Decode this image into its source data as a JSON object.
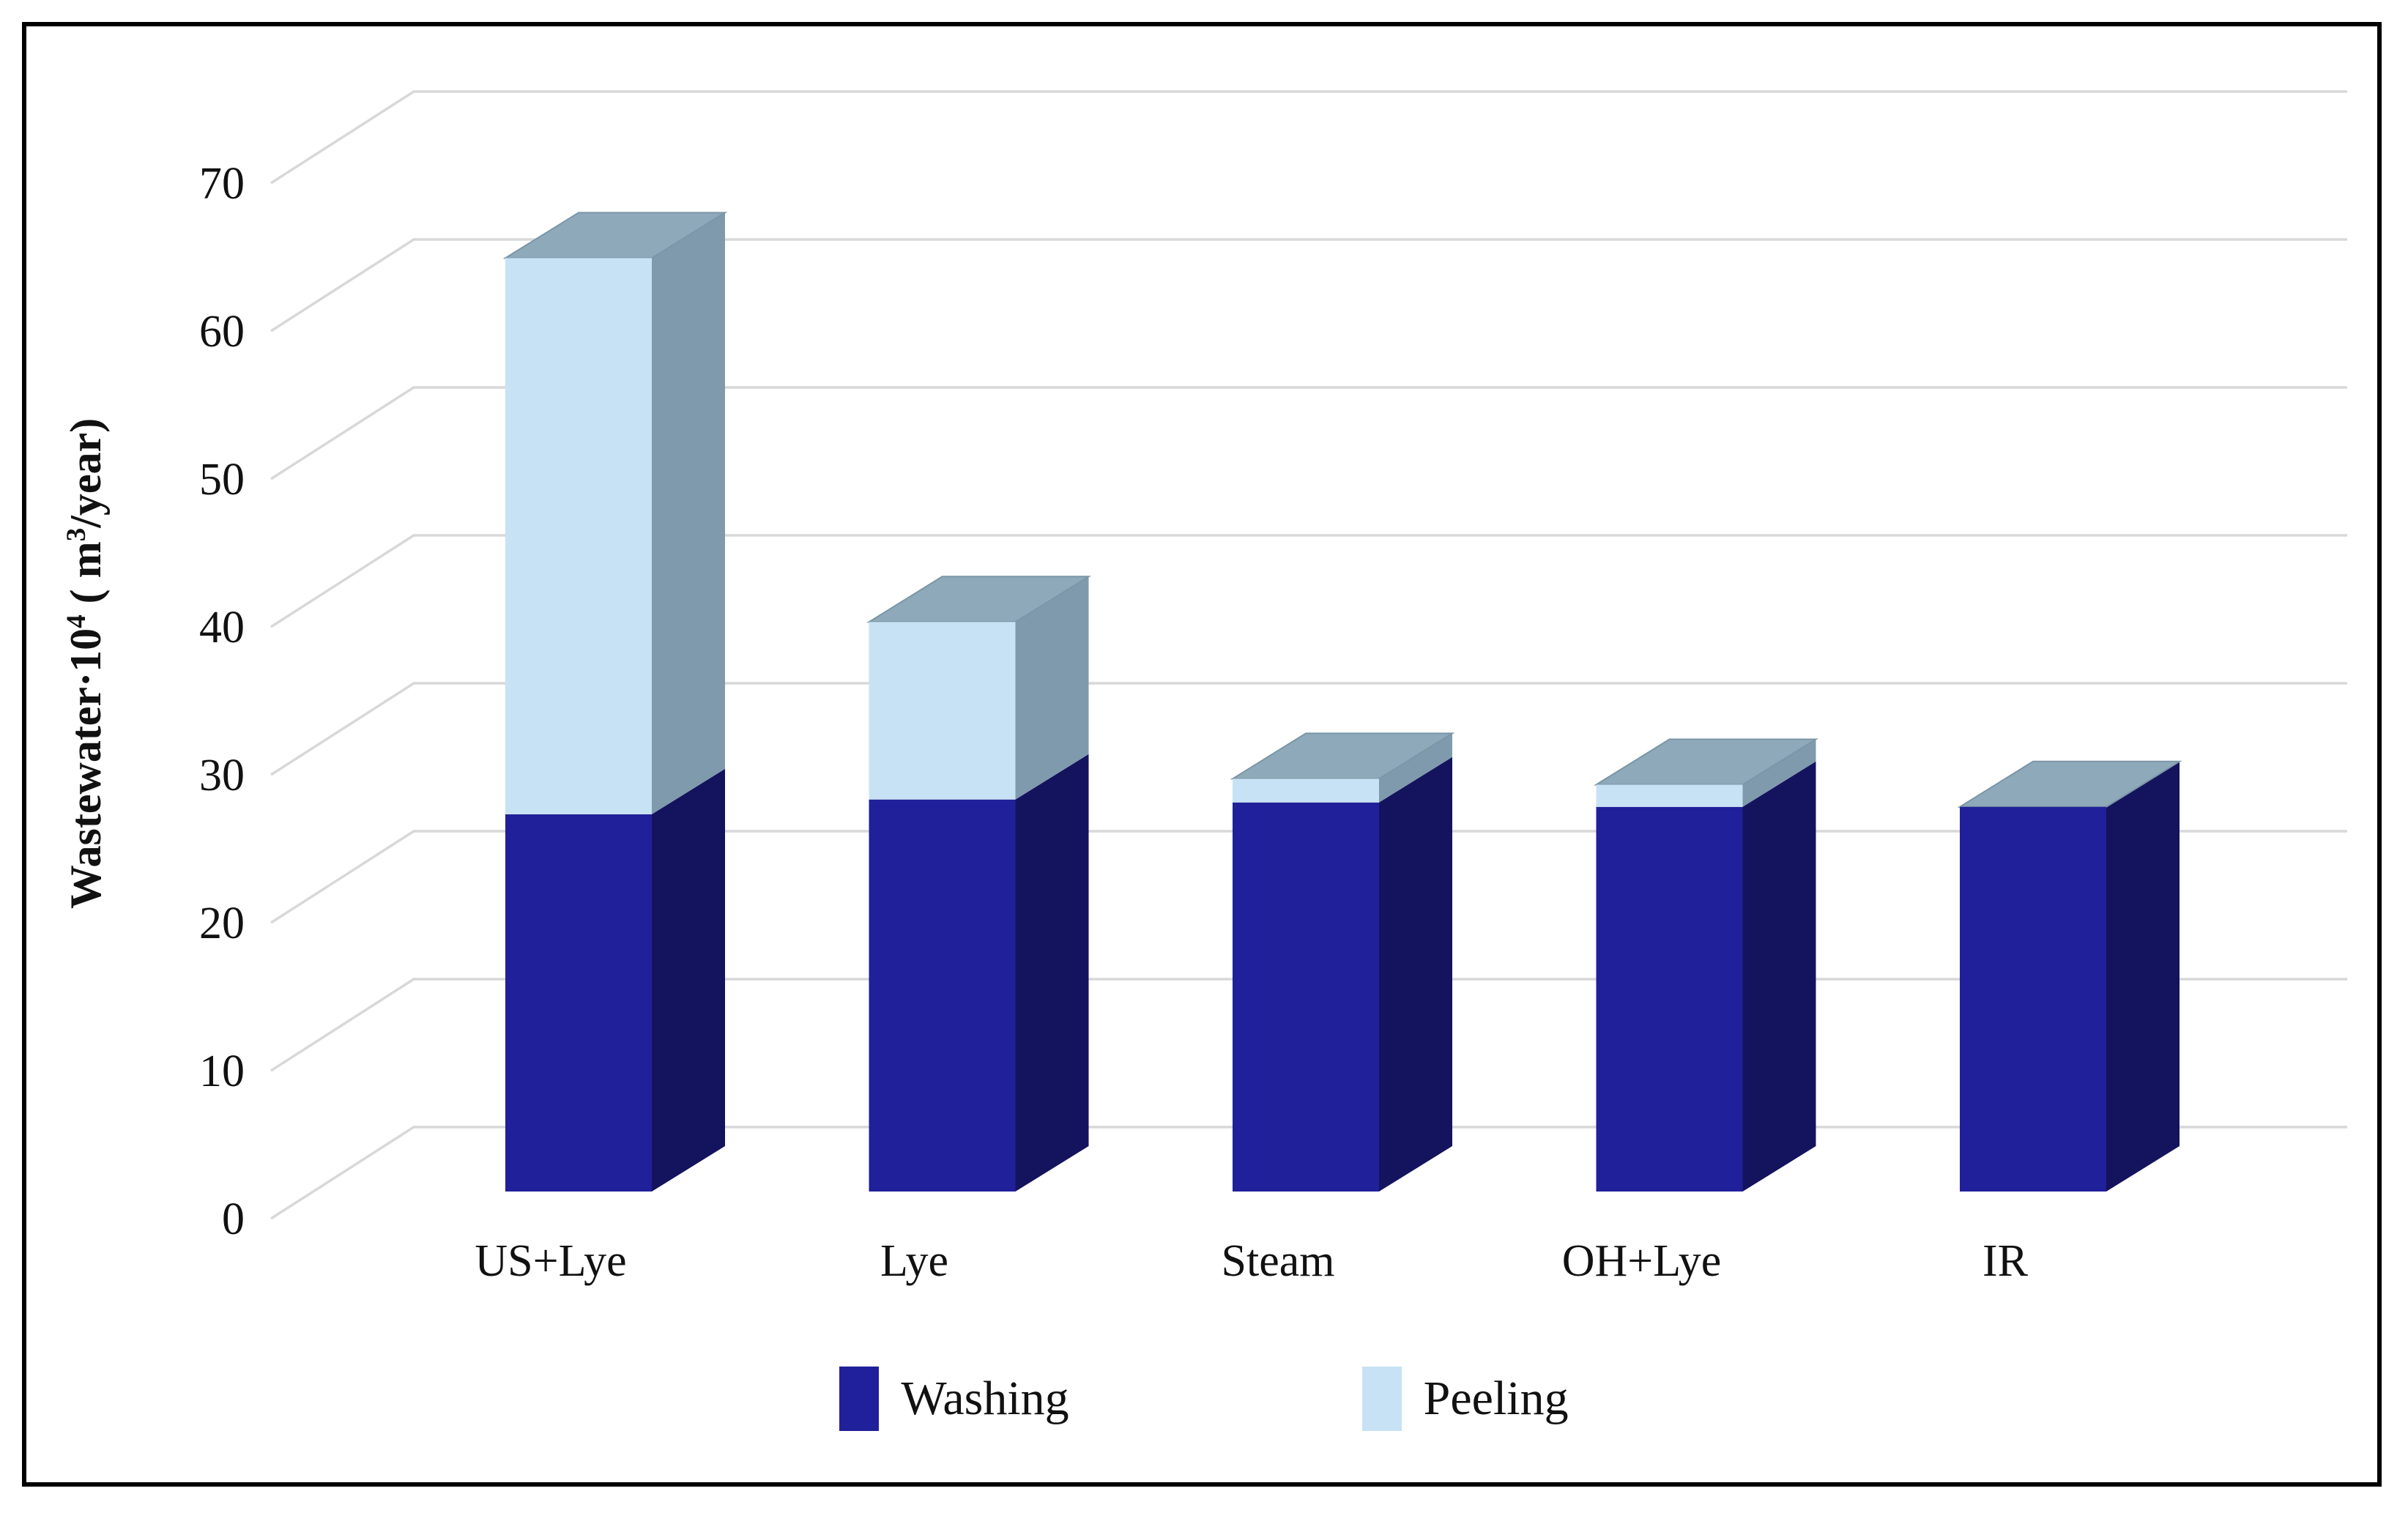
{
  "y_axis": {
    "title_segments": [
      {
        "text": "Wastewater·10",
        "sup": false
      },
      {
        "text": "4",
        "sup": true
      },
      {
        "text": " ( m",
        "sup": false
      },
      {
        "text": "3",
        "sup": true
      },
      {
        "text": "/year)",
        "sup": false
      }
    ],
    "ticks": [
      "0",
      "10",
      "20",
      "30",
      "40",
      "50",
      "60",
      "70"
    ]
  },
  "chart_data": {
    "type": "bar",
    "stacked": true,
    "projection": "3d",
    "title": "",
    "xlabel": "",
    "ylabel": "Wastewater·10^4 (m^3/year)",
    "categories": [
      "US+Lye",
      "Lye",
      "Steam",
      "OH+Lye",
      "IR"
    ],
    "series": [
      {
        "name": "Washing",
        "values": [
          25.5,
          26.5,
          26.3,
          26.0,
          26.0
        ]
      },
      {
        "name": "Peeling",
        "values": [
          37.6,
          12.0,
          1.6,
          1.5,
          0.0
        ]
      }
    ],
    "totals": [
      63.1,
      38.5,
      27.9,
      27.5,
      26.0
    ],
    "ylim": [
      0,
      70
    ],
    "ytick_step": 10,
    "grid": true,
    "legend_position": "bottom"
  },
  "legend": {
    "items": [
      {
        "label": "Washing",
        "color": "#20209a"
      },
      {
        "label": "Peeling",
        "color": "#c7e2f4"
      }
    ]
  },
  "colors": {
    "washing_front": "#20209a",
    "washing_side": "#13135e",
    "peeling_front": "#c7e2f4",
    "peeling_side": "#7f9aac",
    "cap_top": "#8ea9b9",
    "cap_edge": "#7b96a6",
    "gridline": "#d8d8d8",
    "text": "#111111",
    "frame_border": "#000000"
  }
}
